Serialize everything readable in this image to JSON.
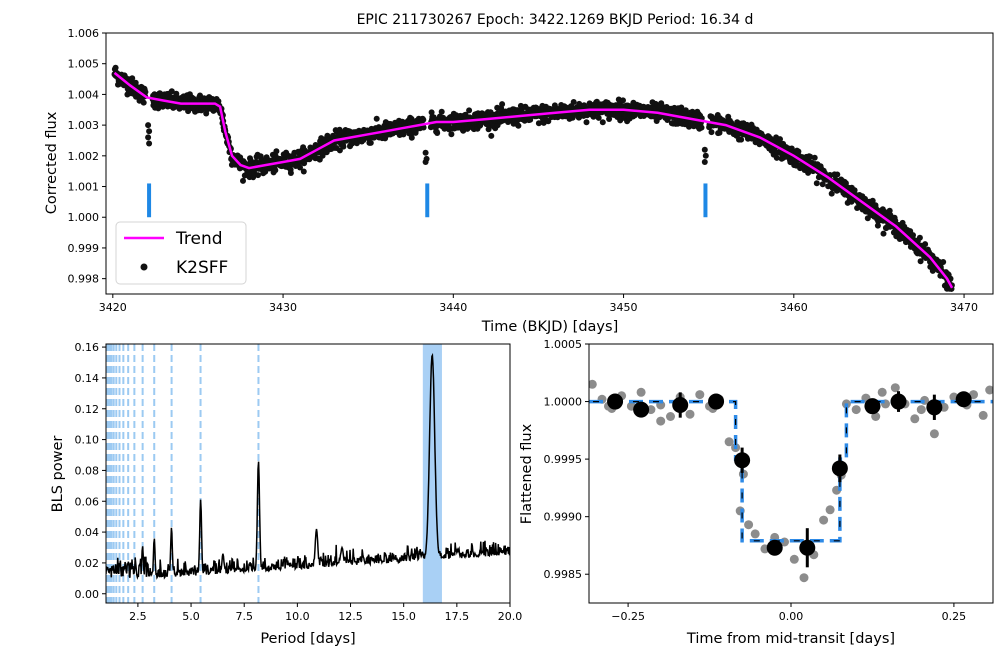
{
  "suptitle": "EPIC 211730267     Epoch: 3422.1269 BKJD     Period: 16.34 d",
  "colors": {
    "trend": "#ff00ff",
    "data": "#111111",
    "transit_marker": "#1e88e5",
    "bls_shade": "#a9d0f5",
    "harmonics": "#9ccaf2",
    "model": "#2e8ae6",
    "raw_folded": "#8c8c8c"
  },
  "chart_data": [
    {
      "id": "lightcurve",
      "type": "scatter",
      "title": "",
      "xlabel": "Time (BKJD) [days]",
      "ylabel": "Corrected flux",
      "xlim": [
        3419.6,
        3471.7
      ],
      "ylim": [
        0.9975,
        1.006
      ],
      "xticks": [
        3420,
        3430,
        3440,
        3450,
        3460,
        3470
      ],
      "yticks": [
        0.998,
        0.999,
        1.0,
        1.001,
        1.002,
        1.003,
        1.004,
        1.005,
        1.006
      ],
      "ytick_labels": [
        "0.998",
        "0.999",
        "1.000",
        "1.001",
        "1.002",
        "1.003",
        "1.004",
        "1.005",
        "1.006"
      ],
      "legend": {
        "placement": "lower-left",
        "entries": [
          "Trend",
          "K2SFF"
        ]
      },
      "trend": {
        "name": "Trend",
        "x": [
          3420.1,
          3421.0,
          3422.0,
          3423.0,
          3424.0,
          3425.0,
          3426.0,
          3426.3,
          3426.6,
          3427.0,
          3427.5,
          3428.0,
          3429.0,
          3430.0,
          3431.0,
          3432.0,
          3433.0,
          3434.0,
          3435.0,
          3436.0,
          3437.0,
          3438.0,
          3439.0,
          3440.0,
          3442.0,
          3444.0,
          3446.0,
          3448.0,
          3450.0,
          3452.0,
          3454.0,
          3456.0,
          3458.0,
          3460.0,
          3462.0,
          3464.0,
          3466.0,
          3467.0,
          3468.0,
          3469.0,
          3469.3
        ],
        "y": [
          1.0047,
          1.0043,
          1.0039,
          1.0038,
          1.0037,
          1.0037,
          1.0037,
          1.0036,
          1.0028,
          1.002,
          1.0017,
          1.0016,
          1.0017,
          1.0018,
          1.0019,
          1.0022,
          1.0025,
          1.0026,
          1.0027,
          1.0028,
          1.0029,
          1.003,
          1.0031,
          1.0031,
          1.0032,
          1.0033,
          1.0034,
          1.0035,
          1.0035,
          1.0034,
          1.0032,
          1.003,
          1.0026,
          1.002,
          1.0013,
          1.0005,
          0.9997,
          0.9992,
          0.9987,
          0.998,
          0.9977
        ]
      },
      "transits_observed": [
        {
          "x": 3422.1,
          "depth_points": [
            1.003,
            1.0028,
            1.0026,
            1.0024
          ]
        },
        {
          "x": 3438.4,
          "depth_points": [
            1.0021,
            1.0019,
            1.0018
          ]
        },
        {
          "x": 3454.8,
          "depth_points": [
            1.0022,
            1.002,
            1.0018
          ]
        }
      ],
      "transit_markers": {
        "x": [
          3422.13,
          3438.47,
          3454.81
        ],
        "y_range": [
          1.0,
          1.0011
        ]
      },
      "data_series": {
        "name": "K2SFF",
        "scatter": 0.00014
      }
    },
    {
      "id": "bls",
      "type": "line",
      "title": "",
      "xlabel": "Period [days]",
      "ylabel": "BLS power",
      "xlim": [
        1.0,
        20.0
      ],
      "ylim": [
        -0.006,
        0.162
      ],
      "xticks": [
        2.5,
        5.0,
        7.5,
        10.0,
        12.5,
        15.0,
        17.5,
        20.0
      ],
      "xtick_labels": [
        "2.5",
        "5.0",
        "7.5",
        "10.0",
        "12.5",
        "15.0",
        "17.5",
        "20.0"
      ],
      "yticks": [
        0.0,
        0.02,
        0.04,
        0.06,
        0.08,
        0.1,
        0.12,
        0.14,
        0.16
      ],
      "ytick_labels": [
        "0.00",
        "0.02",
        "0.04",
        "0.06",
        "0.08",
        "0.10",
        "0.12",
        "0.14",
        "0.16"
      ],
      "best_period": 16.34,
      "best_power": 0.155,
      "highlight_range": [
        15.9,
        16.8
      ],
      "peaks": [
        {
          "period": 8.17,
          "power": 0.086
        },
        {
          "period": 5.45,
          "power": 0.061
        },
        {
          "period": 4.08,
          "power": 0.043
        },
        {
          "period": 3.27,
          "power": 0.036
        },
        {
          "period": 2.72,
          "power": 0.031
        },
        {
          "period": 10.9,
          "power": 0.042
        },
        {
          "period": 12.1,
          "power": 0.03
        },
        {
          "period": 6.5,
          "power": 0.026
        }
      ],
      "harmonic_lines": [
        8.17,
        5.447,
        4.085,
        3.268,
        2.723,
        2.334,
        2.043,
        1.816,
        1.634,
        1.485,
        1.362,
        1.257,
        1.167,
        1.089,
        1.021
      ]
    },
    {
      "id": "folded",
      "type": "scatter",
      "title": "",
      "xlabel": "Time from mid-transit [days]",
      "ylabel": "Flattened flux",
      "xlim": [
        -0.31,
        0.31
      ],
      "ylim": [
        0.99825,
        1.0005
      ],
      "xticks": [
        -0.25,
        0.0,
        0.25
      ],
      "xtick_labels": [
        "−0.25",
        "0.00",
        "0.25"
      ],
      "yticks": [
        0.9985,
        0.999,
        0.9995,
        1.0,
        1.0005
      ],
      "ytick_labels": [
        "0.9985",
        "0.9990",
        "0.9995",
        "1.0000",
        "1.0005"
      ],
      "model": {
        "x": [
          -0.31,
          -0.085,
          -0.085,
          -0.075,
          -0.075,
          0.075,
          0.075,
          0.085,
          0.085,
          0.31
        ],
        "y": [
          1.0,
          1.0,
          0.9995,
          0.9995,
          0.99879,
          0.99879,
          0.9995,
          0.9995,
          1.0,
          1.0
        ]
      },
      "raw_points": {
        "x": [
          -0.305,
          -0.29,
          -0.275,
          -0.26,
          -0.245,
          -0.23,
          -0.215,
          -0.2,
          -0.185,
          -0.17,
          -0.155,
          -0.14,
          -0.125,
          -0.11,
          -0.095,
          -0.085,
          -0.078,
          -0.073,
          -0.065,
          -0.055,
          -0.04,
          -0.025,
          -0.01,
          0.005,
          0.02,
          0.035,
          0.05,
          0.06,
          0.07,
          0.077,
          0.085,
          0.1,
          0.115,
          0.13,
          0.145,
          0.16,
          0.175,
          0.19,
          0.205,
          0.22,
          0.235,
          0.25,
          0.265,
          0.28,
          0.295,
          0.305,
          -0.28,
          -0.2,
          -0.12,
          0.14,
          0.2,
          0.27
        ],
        "y": [
          1.00015,
          1.00002,
          0.99994,
          1.00005,
          0.99996,
          1.00008,
          0.99993,
          0.99997,
          0.99987,
          1.00004,
          0.99989,
          1.00006,
          0.99996,
          1.00002,
          0.99965,
          0.9996,
          0.99905,
          0.99937,
          0.99893,
          0.99885,
          0.99872,
          0.99882,
          0.99878,
          0.99863,
          0.99847,
          0.99867,
          0.99897,
          0.99906,
          0.99923,
          0.99936,
          0.99998,
          0.99993,
          1.00003,
          0.99987,
          0.99998,
          1.00012,
          0.99998,
          0.99985,
          1.00001,
          0.99972,
          0.99995,
          1.00004,
          0.99999,
          1.00006,
          0.99988,
          1.0001,
          0.99996,
          0.99983,
          0.99994,
          1.00008,
          0.99993,
          0.99997
        ]
      },
      "binned": {
        "x": [
          -0.27,
          -0.23,
          -0.17,
          -0.115,
          -0.075,
          -0.025,
          0.025,
          0.075,
          0.125,
          0.165,
          0.22,
          0.265
        ],
        "y": [
          1.0,
          0.99993,
          0.99997,
          1.0,
          0.99949,
          0.99873,
          0.99873,
          0.99942,
          0.99996,
          1.0,
          0.99995,
          1.00002
        ],
        "err": [
          5e-05,
          4e-05,
          0.00011,
          5e-05,
          0.00011,
          5e-05,
          0.00017,
          0.00012,
          6e-05,
          9e-05,
          0.00011,
          5e-05
        ]
      }
    }
  ]
}
